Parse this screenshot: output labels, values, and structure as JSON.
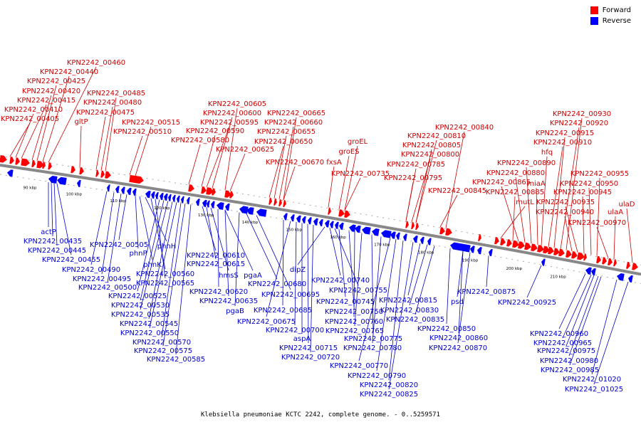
{
  "caption": "Klebsiella pneumoniae KCTC 2242, complete genome. - 0..5259571",
  "legend": {
    "forward": {
      "label": "Forward",
      "color": "#ff0000"
    },
    "reverse": {
      "label": "Reverse",
      "color": "#0000ff"
    }
  },
  "colors": {
    "forward_label": "#cc0000",
    "reverse_label": "#0000cc",
    "backbone": "#888888"
  },
  "kbp_ticks": [
    "90 kbp",
    "100 kbp",
    "110 kbp",
    "120 kbp",
    "130 kbp",
    "140 kbp",
    "150 kbp",
    "160 kbp",
    "170 kbp",
    "180 kbp",
    "190 kbp",
    "200 kbp",
    "210 kbp"
  ],
  "forward_labels": [
    "KPN2242_00460",
    "KPN2242_00440",
    "KPN2242_00425",
    "KPN2242_00420",
    "KPN2242_00415",
    "KPN2242_00410",
    "KPN2242_00405",
    "KPN2242_00485",
    "KPN2242_00480",
    "KPN2242_00475",
    "gltP",
    "KPN2242_00515",
    "KPN2242_00510",
    "KPN2242_00605",
    "KPN2242_00600",
    "KPN2242_00595",
    "KPN2242_00590",
    "KPN2242_00580",
    "KPN2242_00625",
    "KPN2242_00665",
    "KPN2242_00660",
    "KPN2242_00655",
    "KPN2242_00650",
    "KPN2242_00670",
    "fxsA",
    "groEL",
    "groES",
    "KPN2242_00735",
    "KPN2242_00840",
    "KPN2242_00810",
    "KPN2242_00805",
    "KPN2242_00800",
    "KPN2242_00785",
    "KPN2242_00795",
    "KPN2242_00845",
    "KPN2242_00930",
    "KPN2242_00920",
    "KPN2242_00915",
    "KPN2242_00910",
    "hfq",
    "KPN2242_00890",
    "KPN2242_00880",
    "KPN2242_00865",
    "miaA",
    "KPN2242_00885",
    "mutL",
    "KPN2242_00955",
    "KPN2242_00950",
    "KPN2242_00945",
    "KPN2242_00935",
    "KPN2242_00940",
    "KPN2242_00970",
    "ulaD",
    "ulaA"
  ],
  "reverse_labels": [
    "actP",
    "KPN2242_00435",
    "KPN2242_00445",
    "KPN2242_00455",
    "KPN2242_00490",
    "KPN2242_00495",
    "KPN2242_00500",
    "KPN2242_00505",
    "phnP",
    "phnK",
    "phnH",
    "KPN2242_00560",
    "KPN2242_00565",
    "KPN2242_00525",
    "KPN2242_00530",
    "KPN2242_00535",
    "KPN2242_00545",
    "KPN2242_00550",
    "KPN2242_00570",
    "KPN2242_00575",
    "KPN2242_00585",
    "KPN2242_00610",
    "KPN2242_00615",
    "hmsS",
    "pgaA",
    "KPN2242_00620",
    "KPN2242_00635",
    "pgaB",
    "KPN2242_00680",
    "KPN2242_00695",
    "KPN2242_00685",
    "KPN2242_00675",
    "KPN2242_00700",
    "aspA",
    "KPN2242_00715",
    "KPN2242_00720",
    "dipZ",
    "KPN2242_00740",
    "KPN2242_00755",
    "KPN2242_00745",
    "KPN2242_00750",
    "KPN2242_00760",
    "KPN2242_00765",
    "KPN2242_00775",
    "KPN2242_00780",
    "KPN2242_00770",
    "KPN2242_00790",
    "KPN2242_00820",
    "KPN2242_00825",
    "KPN2242_00815",
    "KPN2242_00830",
    "KPN2242_00835",
    "KPN2242_00850",
    "KPN2242_00860",
    "KPN2242_00870",
    "psd",
    "KPN2242_00875",
    "KPN2242_00925",
    "KPN2242_00960",
    "KPN2242_00965",
    "KPN2242_00975",
    "KPN2242_00980",
    "KPN2242_00985",
    "KPN2242_01020",
    "KPN2242_01025"
  ]
}
